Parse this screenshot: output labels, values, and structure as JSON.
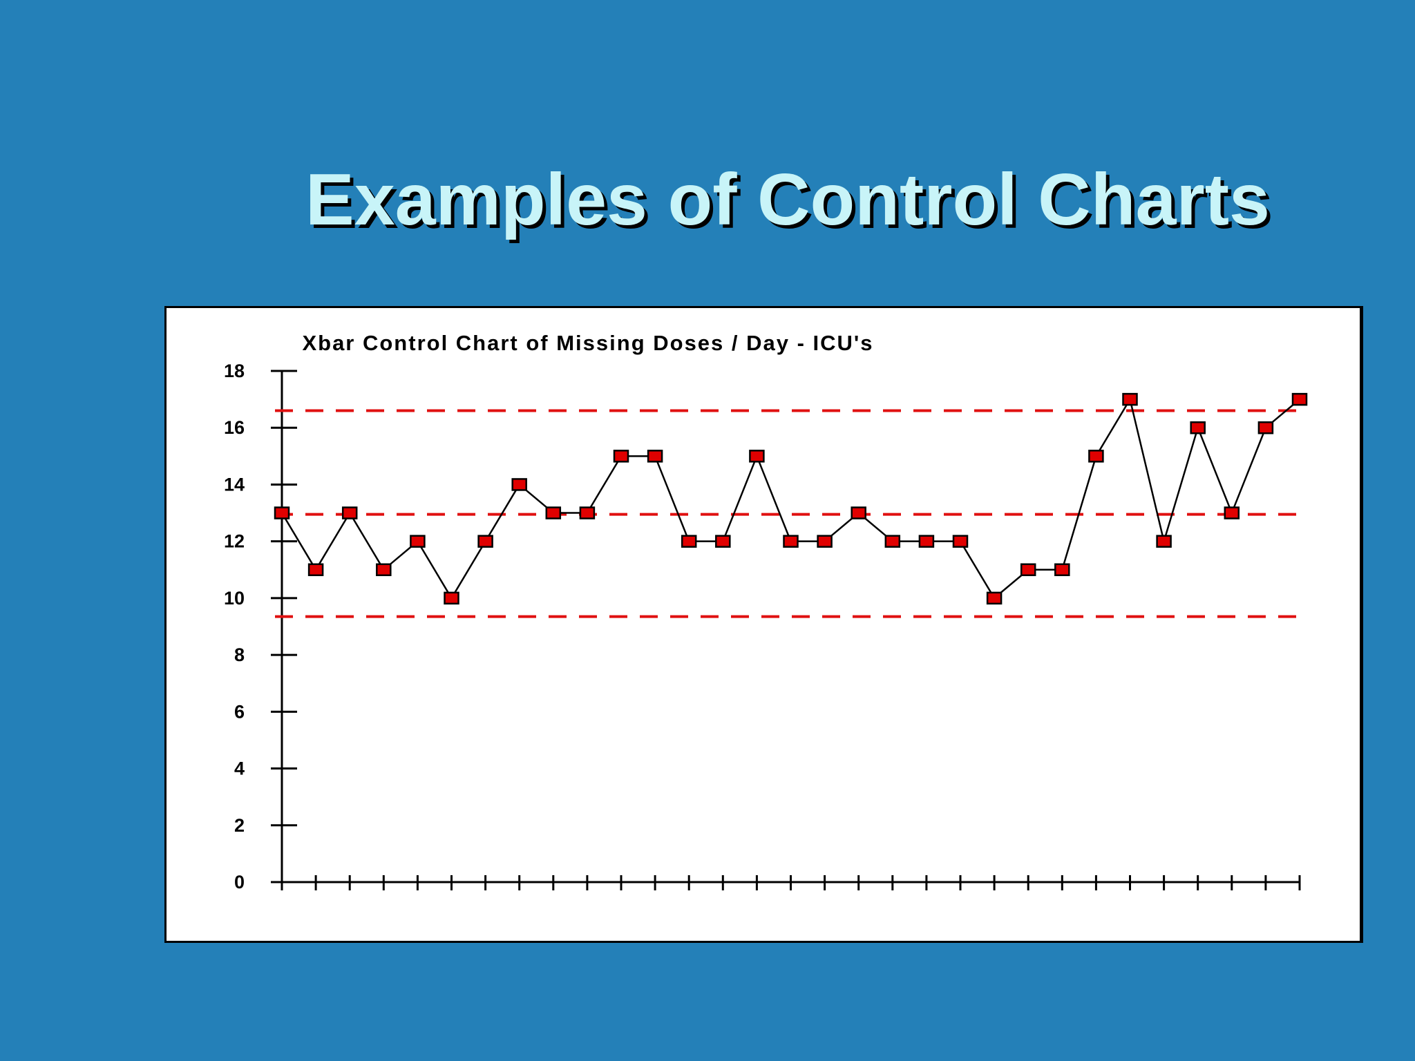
{
  "slide": {
    "title": "Examples of Control Charts"
  },
  "colors": {
    "background": "#2480b8",
    "title_text": "#c8f4f8",
    "control_line": "#e01010",
    "marker_fill": "#e00000",
    "series_line": "#000000"
  },
  "chart_data": {
    "type": "line",
    "title": "Xbar Control Chart of Missing Doses / Day - ICU's",
    "xlabel": "",
    "ylabel": "",
    "ylim": [
      0,
      18
    ],
    "yticks": [
      0,
      2,
      4,
      6,
      8,
      10,
      12,
      14,
      16,
      18
    ],
    "x": [
      1,
      2,
      3,
      4,
      5,
      6,
      7,
      8,
      9,
      10,
      11,
      12,
      13,
      14,
      15,
      16,
      17,
      18,
      19,
      20,
      21,
      22,
      23,
      24,
      25,
      26,
      27,
      28,
      29,
      30,
      31
    ],
    "xticks_labeled": false,
    "grid": false,
    "legend": "none",
    "series": [
      {
        "values": [
          13,
          11,
          13,
          11,
          12,
          10,
          12,
          14,
          13,
          13,
          15,
          15,
          12,
          12,
          15,
          12,
          12,
          13,
          12,
          12,
          12,
          10,
          11,
          11,
          15,
          17,
          12,
          16,
          13,
          16,
          17
        ],
        "marker": "square",
        "marker_color": "#e00000",
        "line_color": "#000000"
      }
    ],
    "control_lines": [
      {
        "value": 16.6,
        "style": "dashed",
        "color": "#e01010"
      },
      {
        "value": 12.95,
        "style": "dashed",
        "color": "#e01010"
      },
      {
        "value": 9.35,
        "style": "dashed",
        "color": "#e01010"
      }
    ]
  }
}
